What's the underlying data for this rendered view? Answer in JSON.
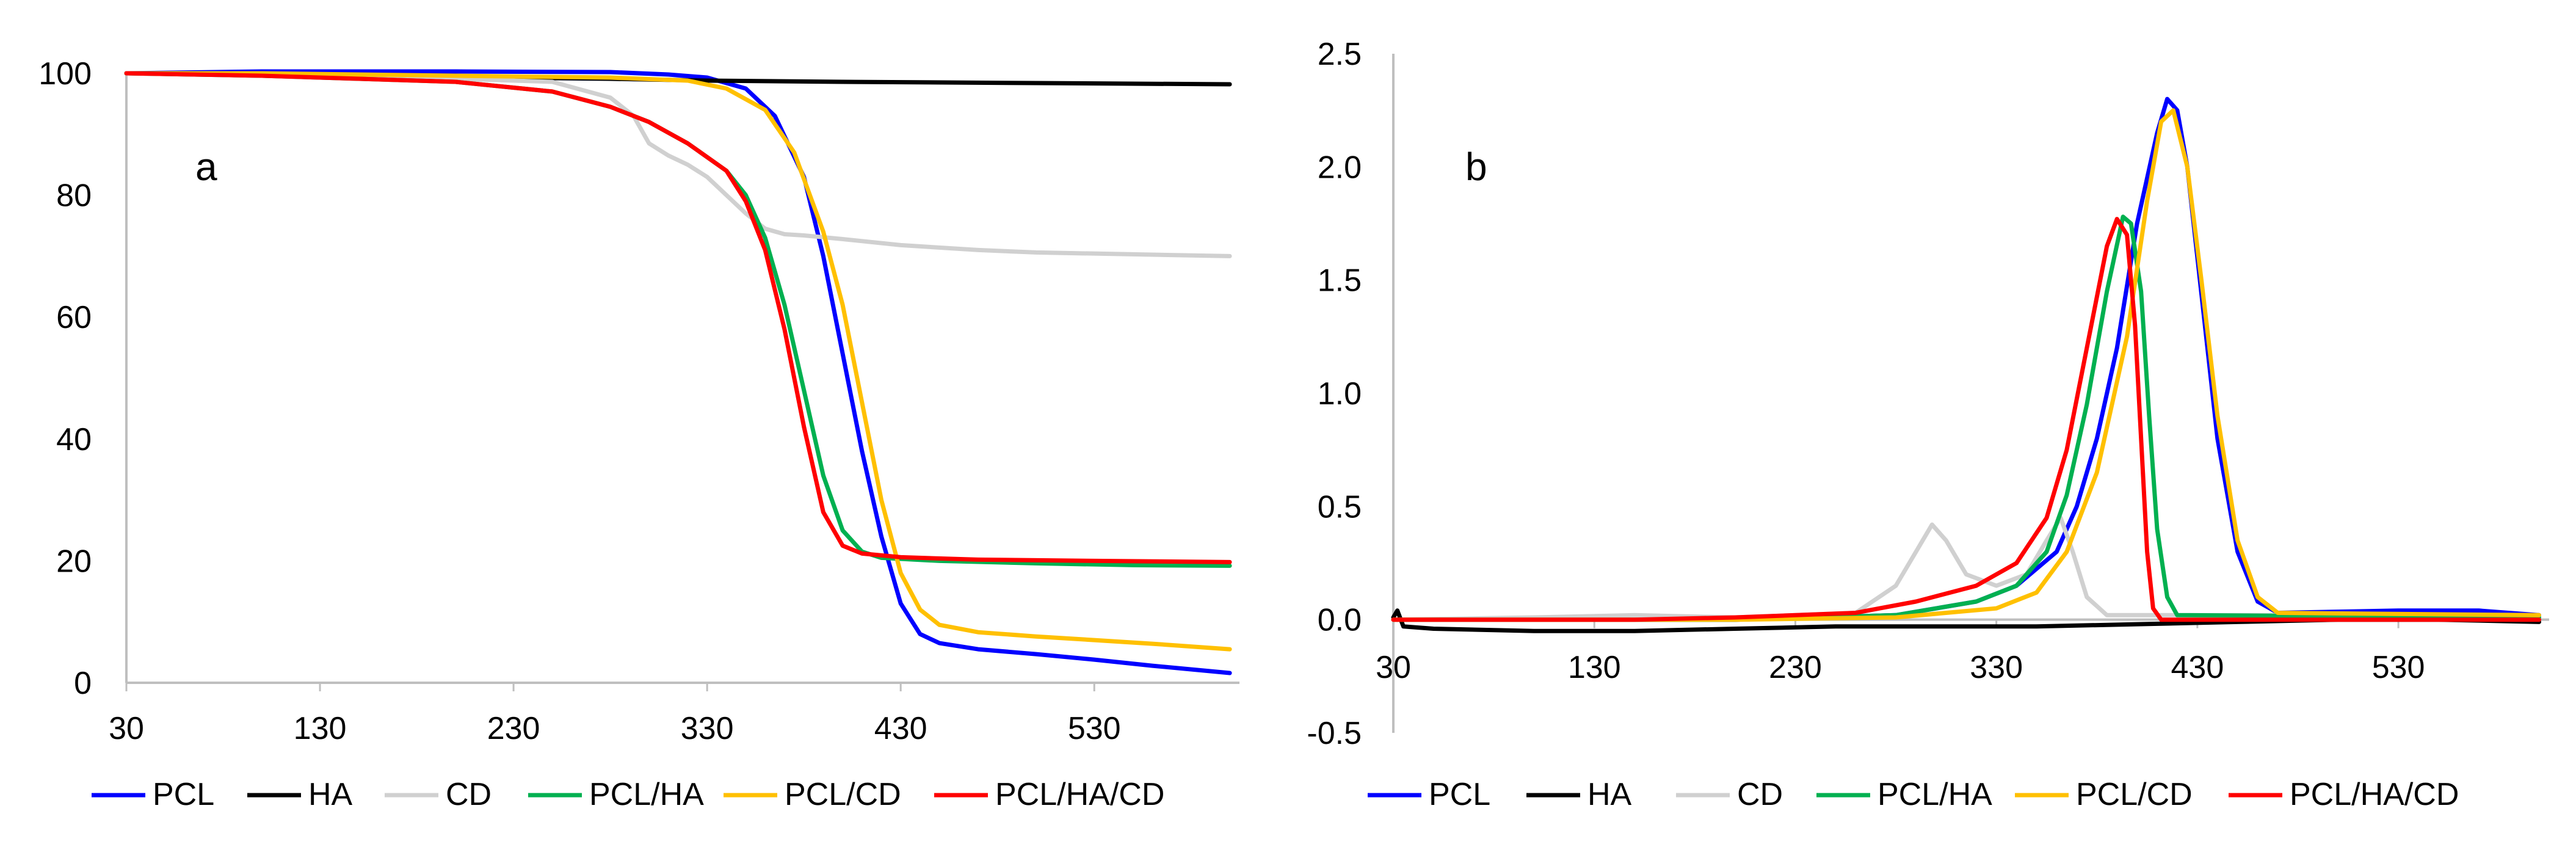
{
  "charts": [
    {
      "type": "line",
      "panel_label": "a",
      "xlim": [
        30,
        605
      ],
      "ylim": [
        0,
        100
      ],
      "x_ticks": [
        30,
        130,
        230,
        330,
        430,
        530
      ],
      "y_ticks": [
        0,
        20,
        40,
        60,
        80,
        100
      ],
      "x_tick_labels": [
        "30",
        "130",
        "230",
        "330",
        "430",
        "530"
      ],
      "y_tick_labels": [
        "0",
        "20",
        "40",
        "60",
        "80",
        "100"
      ],
      "legend": [
        "PCL",
        "HA",
        "CD",
        "PCL/HA",
        "PCL/CD",
        "PCL/HA/CD"
      ],
      "series": [
        {
          "name": "PCL",
          "color": "#0000FF",
          "points": [
            [
              30,
              100
            ],
            [
              100,
              100.3
            ],
            [
              200,
              100.3
            ],
            [
              280,
              100.2
            ],
            [
              310,
              99.8
            ],
            [
              330,
              99.3
            ],
            [
              350,
              97.5
            ],
            [
              365,
              93
            ],
            [
              380,
              83
            ],
            [
              390,
              70
            ],
            [
              400,
              54
            ],
            [
              410,
              38
            ],
            [
              420,
              24
            ],
            [
              430,
              13
            ],
            [
              440,
              8
            ],
            [
              450,
              6.5
            ],
            [
              470,
              5.5
            ],
            [
              500,
              4.7
            ],
            [
              530,
              3.8
            ],
            [
              560,
              2.8
            ],
            [
              600,
              1.6
            ]
          ]
        },
        {
          "name": "HA",
          "color": "#000000",
          "points": [
            [
              30,
              100
            ],
            [
              100,
              99.8
            ],
            [
              200,
              99.4
            ],
            [
              280,
              99.1
            ],
            [
              330,
              98.8
            ],
            [
              400,
              98.6
            ],
            [
              500,
              98.4
            ],
            [
              600,
              98.2
            ]
          ]
        },
        {
          "name": "CD",
          "color": "#D0D0D0",
          "points": [
            [
              30,
              100
            ],
            [
              100,
              99.6
            ],
            [
              200,
              99.1
            ],
            [
              250,
              98.6
            ],
            [
              280,
              96
            ],
            [
              292,
              93
            ],
            [
              300,
              88.5
            ],
            [
              310,
              86.5
            ],
            [
              320,
              85
            ],
            [
              330,
              83
            ],
            [
              340,
              80
            ],
            [
              350,
              77
            ],
            [
              360,
              74.5
            ],
            [
              370,
              73.6
            ],
            [
              380,
              73.4
            ],
            [
              400,
              72.8
            ],
            [
              430,
              71.8
            ],
            [
              470,
              71
            ],
            [
              500,
              70.6
            ],
            [
              550,
              70.3
            ],
            [
              600,
              70
            ]
          ]
        },
        {
          "name": "PCL/HA",
          "color": "#00B050",
          "points": [
            [
              30,
              100
            ],
            [
              100,
              99.6
            ],
            [
              200,
              98.6
            ],
            [
              250,
              97
            ],
            [
              280,
              94.5
            ],
            [
              300,
              92
            ],
            [
              320,
              88.5
            ],
            [
              340,
              84
            ],
            [
              350,
              80
            ],
            [
              360,
              73
            ],
            [
              370,
              62
            ],
            [
              380,
              48
            ],
            [
              390,
              34
            ],
            [
              400,
              25
            ],
            [
              410,
              21.5
            ],
            [
              420,
              20.5
            ],
            [
              450,
              20
            ],
            [
              500,
              19.6
            ],
            [
              550,
              19.3
            ],
            [
              600,
              19.2
            ]
          ]
        },
        {
          "name": "PCL/CD",
          "color": "#FFC000",
          "points": [
            [
              30,
              100
            ],
            [
              100,
              100
            ],
            [
              200,
              99.6
            ],
            [
              280,
              99.3
            ],
            [
              320,
              98.8
            ],
            [
              340,
              97.5
            ],
            [
              360,
              94
            ],
            [
              375,
              87
            ],
            [
              390,
              74
            ],
            [
              400,
              62
            ],
            [
              410,
              46
            ],
            [
              420,
              30
            ],
            [
              430,
              18
            ],
            [
              440,
              12
            ],
            [
              450,
              9.5
            ],
            [
              470,
              8.3
            ],
            [
              500,
              7.6
            ],
            [
              530,
              7
            ],
            [
              560,
              6.4
            ],
            [
              600,
              5.5
            ]
          ]
        },
        {
          "name": "PCL/HA/CD",
          "color": "#FF0000",
          "points": [
            [
              30,
              100
            ],
            [
              100,
              99.6
            ],
            [
              200,
              98.6
            ],
            [
              250,
              97
            ],
            [
              280,
              94.5
            ],
            [
              300,
              92
            ],
            [
              320,
              88.5
            ],
            [
              340,
              84
            ],
            [
              350,
              79
            ],
            [
              360,
              71
            ],
            [
              370,
              58
            ],
            [
              380,
              42
            ],
            [
              390,
              28
            ],
            [
              400,
              22.5
            ],
            [
              410,
              21.2
            ],
            [
              430,
              20.6
            ],
            [
              470,
              20.2
            ],
            [
              530,
              20
            ],
            [
              600,
              19.8
            ]
          ]
        }
      ]
    },
    {
      "type": "line",
      "panel_label": "b",
      "xlim": [
        30,
        605
      ],
      "ylim": [
        -0.5,
        2.5
      ],
      "x_ticks": [
        30,
        130,
        230,
        330,
        430,
        530
      ],
      "y_ticks": [
        -0.5,
        0.0,
        0.5,
        1.0,
        1.5,
        2.0,
        2.5
      ],
      "x_tick_labels": [
        "30",
        "130",
        "230",
        "330",
        "430",
        "530"
      ],
      "y_tick_labels": [
        "-0.5",
        "0.0",
        "0.5",
        "1.0",
        "1.5",
        "2.0",
        "2.5"
      ],
      "legend": [
        "PCL",
        "HA",
        "CD",
        "PCL/HA",
        "PCL/CD",
        "PCL/HA/CD"
      ],
      "series": [
        {
          "name": "PCL",
          "color": "#0000FF",
          "points": [
            [
              30,
              0
            ],
            [
              200,
              0
            ],
            [
              280,
              0.02
            ],
            [
              320,
              0.08
            ],
            [
              340,
              0.15
            ],
            [
              360,
              0.3
            ],
            [
              370,
              0.5
            ],
            [
              380,
              0.8
            ],
            [
              390,
              1.2
            ],
            [
              400,
              1.75
            ],
            [
              410,
              2.15
            ],
            [
              415,
              2.3
            ],
            [
              420,
              2.25
            ],
            [
              425,
              2.0
            ],
            [
              430,
              1.6
            ],
            [
              440,
              0.8
            ],
            [
              450,
              0.3
            ],
            [
              460,
              0.08
            ],
            [
              470,
              0.03
            ],
            [
              530,
              0.04
            ],
            [
              570,
              0.04
            ],
            [
              600,
              0.02
            ]
          ]
        },
        {
          "name": "HA",
          "color": "#000000",
          "points": [
            [
              30,
              0.01
            ],
            [
              32,
              0.04
            ],
            [
              35,
              -0.03
            ],
            [
              50,
              -0.04
            ],
            [
              100,
              -0.05
            ],
            [
              150,
              -0.05
            ],
            [
              200,
              -0.04
            ],
            [
              250,
              -0.03
            ],
            [
              300,
              -0.03
            ],
            [
              350,
              -0.03
            ],
            [
              400,
              -0.02
            ],
            [
              450,
              -0.01
            ],
            [
              500,
              0
            ],
            [
              550,
              0
            ],
            [
              600,
              -0.01
            ]
          ]
        },
        {
          "name": "CD",
          "color": "#D0D0D0",
          "points": [
            [
              30,
              0
            ],
            [
              100,
              0.01
            ],
            [
              150,
              0.02
            ],
            [
              200,
              0.01
            ],
            [
              260,
              0.03
            ],
            [
              280,
              0.15
            ],
            [
              290,
              0.3
            ],
            [
              298,
              0.42
            ],
            [
              305,
              0.35
            ],
            [
              315,
              0.2
            ],
            [
              330,
              0.15
            ],
            [
              345,
              0.2
            ],
            [
              355,
              0.35
            ],
            [
              362,
              0.45
            ],
            [
              368,
              0.3
            ],
            [
              375,
              0.1
            ],
            [
              385,
              0.02
            ],
            [
              450,
              0.02
            ],
            [
              500,
              0.02
            ],
            [
              600,
              0.01
            ]
          ]
        },
        {
          "name": "PCL/HA",
          "color": "#00B050",
          "points": [
            [
              30,
              0
            ],
            [
              200,
              0
            ],
            [
              280,
              0.02
            ],
            [
              320,
              0.08
            ],
            [
              340,
              0.15
            ],
            [
              355,
              0.3
            ],
            [
              365,
              0.55
            ],
            [
              375,
              0.95
            ],
            [
              385,
              1.45
            ],
            [
              393,
              1.78
            ],
            [
              397,
              1.75
            ],
            [
              402,
              1.45
            ],
            [
              406,
              0.9
            ],
            [
              410,
              0.4
            ],
            [
              415,
              0.1
            ],
            [
              420,
              0.02
            ],
            [
              600,
              0.01
            ]
          ]
        },
        {
          "name": "PCL/CD",
          "color": "#FFC000",
          "points": [
            [
              30,
              0
            ],
            [
              200,
              0
            ],
            [
              280,
              0.01
            ],
            [
              330,
              0.05
            ],
            [
              350,
              0.12
            ],
            [
              365,
              0.3
            ],
            [
              380,
              0.65
            ],
            [
              395,
              1.25
            ],
            [
              405,
              1.85
            ],
            [
              412,
              2.2
            ],
            [
              418,
              2.25
            ],
            [
              425,
              2.0
            ],
            [
              432,
              1.5
            ],
            [
              440,
              0.9
            ],
            [
              450,
              0.35
            ],
            [
              460,
              0.1
            ],
            [
              470,
              0.03
            ],
            [
              600,
              0.02
            ]
          ]
        },
        {
          "name": "PCL/HA/CD",
          "color": "#FF0000",
          "points": [
            [
              30,
              0
            ],
            [
              150,
              0
            ],
            [
              200,
              0.01
            ],
            [
              260,
              0.03
            ],
            [
              290,
              0.08
            ],
            [
              320,
              0.15
            ],
            [
              340,
              0.25
            ],
            [
              355,
              0.45
            ],
            [
              365,
              0.75
            ],
            [
              375,
              1.2
            ],
            [
              385,
              1.65
            ],
            [
              390,
              1.77
            ],
            [
              395,
              1.7
            ],
            [
              399,
              1.3
            ],
            [
              402,
              0.8
            ],
            [
              405,
              0.3
            ],
            [
              408,
              0.05
            ],
            [
              412,
              0
            ],
            [
              600,
              0
            ]
          ]
        }
      ]
    }
  ],
  "chart_data": [
    {
      "type": "line",
      "panel": "a",
      "title": "",
      "xlabel": "",
      "ylabel": "",
      "xlim": [
        30,
        605
      ],
      "ylim": [
        0,
        100
      ],
      "grid": false,
      "legend_position": "bottom",
      "series_names": [
        "PCL",
        "HA",
        "CD",
        "PCL/HA",
        "PCL/CD",
        "PCL/HA/CD"
      ]
    },
    {
      "type": "line",
      "panel": "b",
      "title": "",
      "xlabel": "",
      "ylabel": "",
      "xlim": [
        30,
        605
      ],
      "ylim": [
        -0.5,
        2.5
      ],
      "grid": false,
      "legend_position": "bottom",
      "series_names": [
        "PCL",
        "HA",
        "CD",
        "PCL/HA",
        "PCL/CD",
        "PCL/HA/CD"
      ]
    }
  ]
}
